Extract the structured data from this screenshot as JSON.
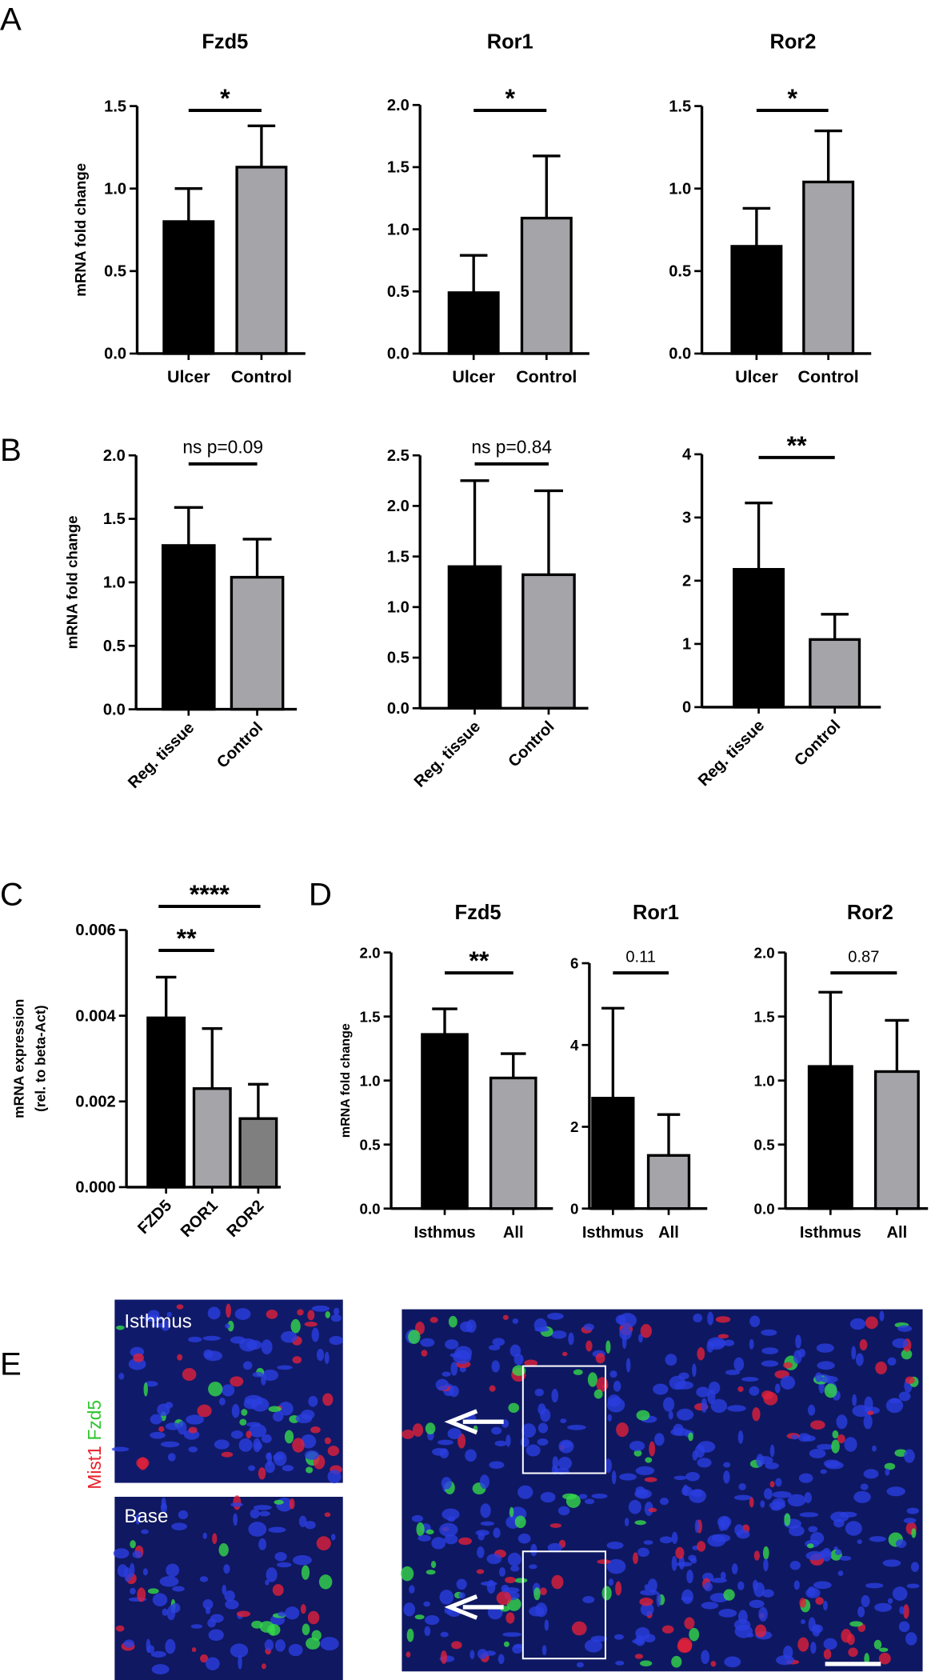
{
  "panel_labels": [
    "A",
    "B",
    "C",
    "D",
    "E"
  ],
  "chart_data": [
    {
      "type": "bar",
      "title": "Fzd5",
      "ylabel": "mRNA fold change",
      "categories": [
        "Ulcer",
        "Control"
      ],
      "values": [
        0.8,
        1.13
      ],
      "errors": [
        0.2,
        0.25
      ],
      "colors": [
        "#000000",
        "#a5a5a9"
      ],
      "ylim": [
        0,
        1.5
      ],
      "yticks": [
        {
          "value": 0,
          "label": "0.0"
        },
        0.5,
        {
          "value": 1,
          "label": "1.0"
        },
        1.5
      ],
      "comparisons": [
        {
          "label": "*",
          "categories": [
            "Ulcer",
            "Control"
          ]
        }
      ]
    },
    {
      "type": "bar",
      "title": "Ror1",
      "categories": [
        "Ulcer",
        "Control"
      ],
      "values": [
        0.49,
        1.09
      ],
      "errors": [
        0.3,
        0.5
      ],
      "colors": [
        "#000000",
        "#a5a5a9"
      ],
      "ylim": [
        0,
        2
      ],
      "yticks": [
        {
          "value": 0,
          "label": "0.0"
        },
        0.5,
        {
          "value": 1,
          "label": "1.0"
        },
        1.5,
        {
          "value": 2,
          "label": "2.0"
        }
      ],
      "comparisons": [
        {
          "label": "*",
          "categories": [
            "Ulcer",
            "Control"
          ]
        }
      ]
    },
    {
      "type": "bar",
      "title": "Ror2",
      "categories": [
        "Ulcer",
        "Control"
      ],
      "values": [
        0.65,
        1.04
      ],
      "errors": [
        0.23,
        0.31
      ],
      "colors": [
        "#000000",
        "#a5a5a9"
      ],
      "ylim": [
        0,
        1.5
      ],
      "yticks": [
        {
          "value": 0,
          "label": "0.0"
        },
        0.5,
        {
          "value": 1,
          "label": "1.0"
        },
        1.5
      ],
      "comparisons": [
        {
          "label": "*",
          "categories": [
            "Ulcer",
            "Control"
          ]
        }
      ]
    },
    {
      "type": "bar",
      "ylabel": "mRNA fold change",
      "categories": [
        "Reg. tissue",
        "Control"
      ],
      "values": [
        1.29,
        1.04
      ],
      "errors": [
        0.3,
        0.3
      ],
      "colors": [
        "#000000",
        "#a5a5a9"
      ],
      "ylim": [
        0,
        2
      ],
      "yticks": [
        {
          "value": 0,
          "label": "0.0"
        },
        0.5,
        {
          "value": 1,
          "label": "1.0"
        },
        1.5,
        {
          "value": 2,
          "label": "2.0"
        }
      ],
      "comparisons": [
        {
          "label": "ns p=0.09",
          "categories": [
            "Reg. tissue",
            "Control"
          ]
        }
      ]
    },
    {
      "type": "bar",
      "categories": [
        "Reg. tissue",
        "Control"
      ],
      "values": [
        1.4,
        1.32
      ],
      "errors": [
        0.85,
        0.83
      ],
      "colors": [
        "#000000",
        "#a5a5a9"
      ],
      "ylim": [
        0,
        2.5
      ],
      "yticks": [
        {
          "value": 0,
          "label": "0.0"
        },
        0.5,
        {
          "value": 1,
          "label": "1.0"
        },
        1.5,
        {
          "value": 2,
          "label": "2.0"
        },
        2.5
      ],
      "comparisons": [
        {
          "label": "ns p=0.84",
          "categories": [
            "Reg. tissue",
            "Control"
          ]
        }
      ]
    },
    {
      "type": "bar",
      "categories": [
        "Reg. tissue",
        "Control"
      ],
      "values": [
        2.18,
        1.07
      ],
      "errors": [
        1.05,
        0.4
      ],
      "colors": [
        "#000000",
        "#a5a5a9"
      ],
      "ylim": [
        0,
        4
      ],
      "yticks": [
        0,
        1,
        2,
        3,
        4
      ],
      "comparisons": [
        {
          "label": "**",
          "categories": [
            "Reg. tissue",
            "Control"
          ]
        }
      ]
    },
    {
      "type": "bar",
      "ylabel": [
        "mRNA expression",
        "(rel. to beta-Act)"
      ],
      "categories": [
        "FZD5",
        "ROR1",
        "ROR2"
      ],
      "values": [
        0.00395,
        0.0023,
        0.0016
      ],
      "errors": [
        0.00095,
        0.0014,
        0.0008
      ],
      "colors": [
        "#000000",
        "#a5a5a9",
        "#7f7f7f"
      ],
      "ylim": [
        0,
        0.006
      ],
      "yticks": [
        {
          "value": 0,
          "label": "0.000"
        },
        0.002,
        0.004,
        0.006
      ],
      "comparisons": [
        {
          "label": "**",
          "categories": [
            "FZD5",
            "ROR1"
          ]
        },
        {
          "label": "****",
          "categories": [
            "FZD5",
            "ROR2"
          ]
        }
      ]
    },
    {
      "type": "bar",
      "title": "Fzd5",
      "ylabel": "mRNA fold change",
      "categories": [
        "Isthmus",
        "All"
      ],
      "values": [
        1.36,
        1.02
      ],
      "errors": [
        0.2,
        0.19
      ],
      "colors": [
        "#000000",
        "#a5a5a9"
      ],
      "ylim": [
        0,
        2
      ],
      "yticks": [
        {
          "value": 0,
          "label": "0.0"
        },
        0.5,
        {
          "value": 1,
          "label": "1.0"
        },
        1.5,
        {
          "value": 2,
          "label": "2.0"
        }
      ],
      "comparisons": [
        {
          "label": "**",
          "categories": [
            "Isthmus",
            "All"
          ]
        }
      ]
    },
    {
      "type": "bar",
      "title": "Ror1",
      "categories": [
        "Isthmus",
        "All"
      ],
      "values": [
        2.7,
        1.3
      ],
      "errors": [
        2.2,
        1.0
      ],
      "colors": [
        "#000000",
        "#a5a5a9"
      ],
      "ylim": [
        0,
        6
      ],
      "yticks": [
        0,
        2,
        4,
        6
      ],
      "comparisons": [
        {
          "label": "0.11",
          "categories": [
            "Isthmus",
            "All"
          ]
        }
      ]
    },
    {
      "type": "bar",
      "title": "Ror2",
      "categories": [
        "Isthmus",
        "All"
      ],
      "values": [
        1.11,
        1.07
      ],
      "errors": [
        0.58,
        0.4
      ],
      "colors": [
        "#000000",
        "#a5a5a9"
      ],
      "ylim": [
        0,
        2
      ],
      "yticks": [
        {
          "value": 0,
          "label": "0.0"
        },
        0.5,
        {
          "value": 1,
          "label": "1.0"
        },
        1.5,
        {
          "value": 2,
          "label": "2.0"
        }
      ],
      "comparisons": [
        {
          "label": "0.87",
          "categories": [
            "Isthmus",
            "All"
          ]
        }
      ]
    }
  ],
  "images": {
    "isthmus_label": "Isthmus",
    "base_label": "Base",
    "stain_red": "Mist1",
    "stain_green": "Fzd5"
  }
}
